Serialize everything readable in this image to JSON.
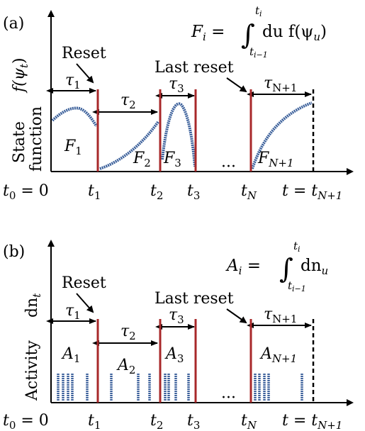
{
  "colors": {
    "reset_line": "#a8282a",
    "curve": "#3a5f9a",
    "axis": "#000000"
  },
  "panel_a": {
    "label": "(a)",
    "ylabel_line1": "State",
    "ylabel_line2": "function",
    "ylabel_func": "f(ψ",
    "ylabel_func_sub": "t",
    "ylabel_func_close": ")",
    "reset_label": "Reset",
    "last_reset_label": "Last reset",
    "formula": {
      "lhs": "F",
      "lhs_sub": "i",
      "equals": " = ",
      "integral": "∫",
      "upper": "t",
      "upper_sub": "i",
      "lower": "t",
      "lower_sub": "i−1",
      "body": "du f(ψ",
      "body_sub": "u",
      "body_close": ")"
    },
    "regions": [
      "F1",
      "F2",
      "F3",
      "FN+1"
    ],
    "ellipsis": "···"
  },
  "panel_b": {
    "label": "(b)",
    "ylabel_line1": "Activity",
    "ylabel_func": "dn",
    "ylabel_func_sub": "t",
    "reset_label": "Reset",
    "last_reset_label": "Last reset",
    "formula": {
      "lhs": "A",
      "lhs_sub": "i",
      "equals": " = ",
      "integral": "∫",
      "upper": "t",
      "upper_sub": "i",
      "lower": "t",
      "lower_sub": "i−1",
      "body": "dn",
      "body_sub": "u"
    },
    "regions": [
      "A1",
      "A2",
      "A3",
      "AN+1"
    ],
    "ellipsis": "···"
  },
  "intervals": [
    {
      "sym": "τ",
      "sub": "1"
    },
    {
      "sym": "τ",
      "sub": "2"
    },
    {
      "sym": "τ",
      "sub": "3"
    },
    {
      "sym": "τ",
      "sub": "N+1"
    }
  ],
  "ticks": {
    "t0": "t",
    "t0_sub": "0",
    "t0_eq": " = 0",
    "t1": "t",
    "t1_sub": "1",
    "t2": "t",
    "t2_sub": "2",
    "t3": "t",
    "t3_sub": "3",
    "tN": "t",
    "tN_sub": "N",
    "tEnd": "t = t",
    "tEnd_sub": "N+1"
  }
}
